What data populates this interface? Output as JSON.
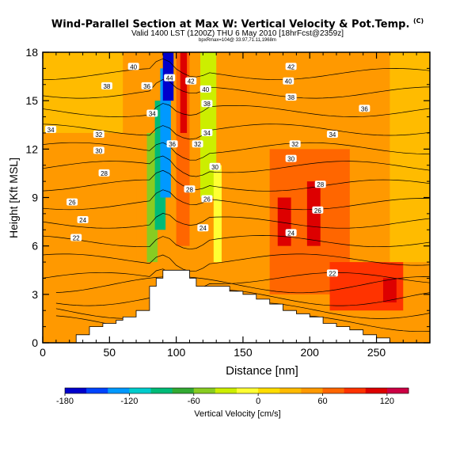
{
  "chart_data": {
    "type": "heatmap",
    "title": "Wind-Parallel Section at Max W: Vertical Velocity & Pot.Temp.",
    "title_mark": "(C)",
    "subtitle": "Valid 1400 LST (1200Z) THU 6 May 2010 [18hrFcst@2359z]",
    "subtitle2": "bpxRmax=104@ 33.97,71.11,1968m",
    "xlabel": "Distance [nm]",
    "ylabel": "Height [Kft MSL]",
    "xlim": [
      0,
      290
    ],
    "ylim": [
      0,
      18
    ],
    "xticks": [
      0,
      50,
      100,
      150,
      200,
      250
    ],
    "yticks": [
      0,
      3,
      6,
      9,
      12,
      15,
      18
    ],
    "colorbar": {
      "label": "Vertical Velocity [cm/s]",
      "ticks": [
        -180,
        -120,
        -60,
        0,
        60,
        120
      ],
      "range": [
        -180,
        140
      ],
      "colors": [
        "#0000cc",
        "#0044ff",
        "#0099ff",
        "#00cccc",
        "#00bb77",
        "#33aa33",
        "#88cc22",
        "#ccee00",
        "#ffff33",
        "#ffdd00",
        "#ffbb00",
        "#ff9900",
        "#ff6600",
        "#ff3300",
        "#dd0000",
        "#cc0044"
      ]
    },
    "terrain_nm": [
      20,
      25,
      35,
      45,
      55,
      60,
      70,
      80,
      85,
      90,
      100,
      110,
      115,
      120,
      130,
      140,
      150,
      160,
      170,
      180,
      190,
      200,
      210,
      220,
      230,
      240,
      250,
      260,
      290
    ],
    "terrain_kft": [
      0,
      0.5,
      1,
      1.2,
      1.4,
      1.6,
      2,
      3.5,
      4,
      4.5,
      4.5,
      4,
      3.5,
      3.5,
      3.5,
      3.2,
      3,
      2.7,
      2.4,
      2,
      1.8,
      1.6,
      1.2,
      1,
      0.8,
      0.5,
      0.3,
      0,
      0
    ],
    "theta_levels": [
      22,
      24,
      26,
      28,
      30,
      32,
      34,
      36,
      38,
      40,
      42,
      44
    ],
    "theta_labels": [
      {
        "x": 25,
        "y": 6.5,
        "text": "22"
      },
      {
        "x": 30,
        "y": 7.6,
        "text": "24"
      },
      {
        "x": 22,
        "y": 8.7,
        "text": "26"
      },
      {
        "x": 46,
        "y": 10.5,
        "text": "28"
      },
      {
        "x": 42,
        "y": 11.9,
        "text": "30"
      },
      {
        "x": 42,
        "y": 12.9,
        "text": "32"
      },
      {
        "x": 6,
        "y": 13.2,
        "text": "34"
      },
      {
        "x": 48,
        "y": 15.9,
        "text": "38"
      },
      {
        "x": 78,
        "y": 15.9,
        "text": "36"
      },
      {
        "x": 68,
        "y": 17.1,
        "text": "40"
      },
      {
        "x": 95,
        "y": 16.4,
        "text": "44"
      },
      {
        "x": 82,
        "y": 14.2,
        "text": "34"
      },
      {
        "x": 97,
        "y": 12.3,
        "text": "36"
      },
      {
        "x": 111,
        "y": 16.2,
        "text": "42"
      },
      {
        "x": 122,
        "y": 15.7,
        "text": "40"
      },
      {
        "x": 123,
        "y": 14.8,
        "text": "38"
      },
      {
        "x": 123,
        "y": 13.0,
        "text": "34"
      },
      {
        "x": 116,
        "y": 12.3,
        "text": "32"
      },
      {
        "x": 129,
        "y": 10.9,
        "text": "30"
      },
      {
        "x": 110,
        "y": 9.5,
        "text": "28"
      },
      {
        "x": 123,
        "y": 8.9,
        "text": "26"
      },
      {
        "x": 120,
        "y": 7.1,
        "text": "24"
      },
      {
        "x": 186,
        "y": 11.4,
        "text": "30"
      },
      {
        "x": 189,
        "y": 12.3,
        "text": "32"
      },
      {
        "x": 208,
        "y": 9.8,
        "text": "28"
      },
      {
        "x": 206,
        "y": 8.2,
        "text": "26"
      },
      {
        "x": 186,
        "y": 6.8,
        "text": "24"
      },
      {
        "x": 217,
        "y": 4.3,
        "text": "22"
      },
      {
        "x": 217,
        "y": 12.9,
        "text": "34"
      },
      {
        "x": 241,
        "y": 14.5,
        "text": "36"
      },
      {
        "x": 186,
        "y": 15.2,
        "text": "38"
      },
      {
        "x": 184,
        "y": 16.2,
        "text": "40"
      },
      {
        "x": 186,
        "y": 17.1,
        "text": "42"
      }
    ],
    "w_cells": [
      {
        "x0": 0,
        "x1": 290,
        "y0": 0,
        "y1": 18,
        "w": 40
      },
      {
        "x0": 0,
        "x1": 290,
        "y0": 0,
        "y1": 3.5,
        "w": 55
      },
      {
        "x0": 0,
        "x1": 60,
        "y0": 13,
        "y1": 18,
        "w": 25
      },
      {
        "x0": 70,
        "x1": 78,
        "y0": 4,
        "y1": 11,
        "w": 55
      },
      {
        "x0": 78,
        "x1": 86,
        "y0": 5,
        "y1": 13,
        "w": -50
      },
      {
        "x0": 84,
        "x1": 92,
        "y0": 7,
        "y1": 15,
        "w": -100
      },
      {
        "x0": 88,
        "x1": 96,
        "y0": 9,
        "y1": 17,
        "w": -140
      },
      {
        "x0": 90,
        "x1": 98,
        "y0": 15,
        "y1": 18,
        "w": -180
      },
      {
        "x0": 100,
        "x1": 110,
        "y0": 6,
        "y1": 18,
        "w": 70
      },
      {
        "x0": 103,
        "x1": 108,
        "y0": 13,
        "y1": 18,
        "w": 110
      },
      {
        "x0": 118,
        "x1": 130,
        "y0": 9,
        "y1": 18,
        "w": -30
      },
      {
        "x0": 128,
        "x1": 134,
        "y0": 5,
        "y1": 11,
        "w": -20
      },
      {
        "x0": 170,
        "x1": 230,
        "y0": 3,
        "y1": 12,
        "w": 60
      },
      {
        "x0": 176,
        "x1": 186,
        "y0": 6,
        "y1": 9,
        "w": 100
      },
      {
        "x0": 198,
        "x1": 208,
        "y0": 6,
        "y1": 10,
        "w": 110
      },
      {
        "x0": 215,
        "x1": 270,
        "y0": 2,
        "y1": 5,
        "w": 80
      },
      {
        "x0": 255,
        "x1": 265,
        "y0": 2.5,
        "y1": 4,
        "w": 110
      },
      {
        "x0": 260,
        "x1": 290,
        "y0": 5,
        "y1": 18,
        "w": 20
      }
    ]
  }
}
